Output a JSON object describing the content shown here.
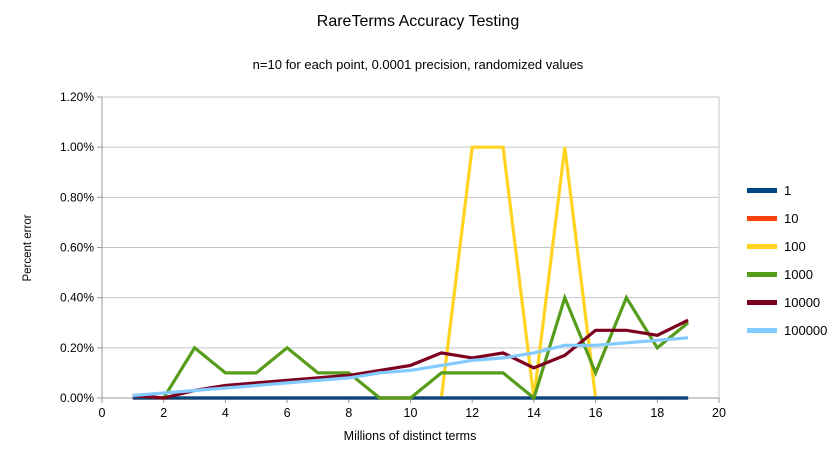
{
  "title": "RareTerms Accuracy Testing",
  "subtitle": "n=10 for each point, 0.0001 precision, randomized values",
  "chart_data": {
    "type": "line",
    "title": "RareTerms Accuracy Testing",
    "subtitle": "n=10 for each point, 0.0001 precision, randomized values",
    "xlabel": "Millions of distinct terms",
    "ylabel": "Percent error",
    "xlim": [
      0,
      20
    ],
    "ylim": [
      0,
      1.2
    ],
    "grid": true,
    "legend_position": "right",
    "x_ticks": [
      0,
      2,
      4,
      6,
      8,
      10,
      12,
      14,
      16,
      18,
      20
    ],
    "y_ticks": [
      "0.00%",
      "0.20%",
      "0.40%",
      "0.60%",
      "0.80%",
      "1.00%",
      "1.20%"
    ],
    "x": [
      1,
      2,
      3,
      4,
      5,
      6,
      7,
      8,
      9,
      10,
      11,
      12,
      13,
      14,
      15,
      16,
      17,
      18,
      19
    ],
    "series": [
      {
        "name": "1",
        "color": "#004586",
        "values": [
          0,
          0,
          0,
          0,
          0,
          0,
          0,
          0,
          0,
          0,
          0,
          0,
          0,
          0,
          0,
          0,
          0,
          0,
          0
        ]
      },
      {
        "name": "10",
        "color": "#ff420e",
        "values": [
          0,
          0,
          0,
          0,
          0,
          0,
          0,
          0,
          0,
          0,
          0,
          0,
          0,
          0,
          0,
          0,
          0,
          0,
          0
        ]
      },
      {
        "name": "100",
        "color": "#ffd320",
        "values": [
          0,
          0,
          0,
          0,
          0,
          0,
          0,
          0,
          0,
          0,
          0,
          1.0,
          1.0,
          0,
          1.0,
          0,
          0,
          0,
          0
        ]
      },
      {
        "name": "1000",
        "color": "#579d1c",
        "values": [
          0.01,
          0,
          0.2,
          0.1,
          0.1,
          0.2,
          0.1,
          0.1,
          0,
          0,
          0.1,
          0.1,
          0.1,
          0,
          0.4,
          0.1,
          0.4,
          0.2,
          0.3
        ]
      },
      {
        "name": "10000",
        "color": "#7e0021",
        "values": [
          0.01,
          0,
          0.03,
          0.05,
          0.06,
          0.07,
          0.08,
          0.09,
          0.11,
          0.13,
          0.18,
          0.16,
          0.18,
          0.12,
          0.17,
          0.27,
          0.27,
          0.25,
          0.31
        ]
      },
      {
        "name": "100000",
        "color": "#83caff",
        "values": [
          0.01,
          0.02,
          0.03,
          0.04,
          0.05,
          0.06,
          0.07,
          0.08,
          0.1,
          0.11,
          0.13,
          0.15,
          0.16,
          0.18,
          0.21,
          0.21,
          0.22,
          0.23,
          0.24
        ]
      }
    ],
    "colors": {
      "grid": "#c5c5c5",
      "axis": "#999999",
      "text": "#000000",
      "background": "#ffffff"
    }
  }
}
